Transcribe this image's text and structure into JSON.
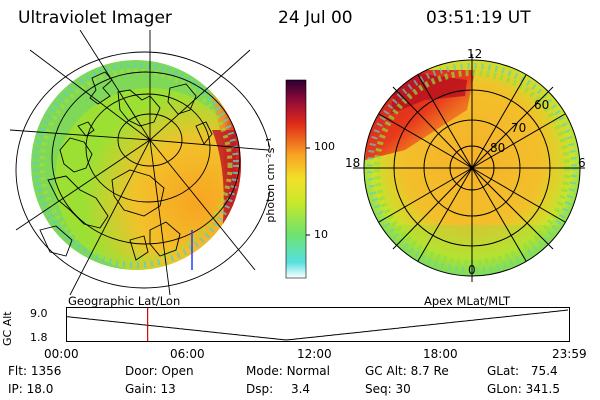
{
  "header": {
    "instrument": "Ultraviolet Imager",
    "date": "24 Jul 00",
    "time": "03:51:19 UT"
  },
  "colorbar": {
    "label": "photon cm⁻²s⁻¹",
    "ticks": [
      "100",
      "10"
    ],
    "scale": "log",
    "colors": [
      "#ffffff",
      "#55e0e0",
      "#6ee26e",
      "#c8e82a",
      "#f2e02a",
      "#f8a422",
      "#e02a1a",
      "#8e0a3a",
      "#2a0030"
    ]
  },
  "left_panel": {
    "caption": "Geographic Lat/Lon"
  },
  "right_panel": {
    "caption": "Apex MLat/MLT",
    "mlt_labels": [
      "12",
      "18",
      "6",
      "0"
    ],
    "lat_labels": [
      "60",
      "70",
      "80"
    ]
  },
  "altitude_plot": {
    "ylabel": "GC Alt",
    "yticks": [
      "9.0",
      "1.8"
    ],
    "xticks": [
      "00:00",
      "06:00",
      "12:00",
      "18:00",
      "23:59"
    ],
    "current_marker_hours": 3.86
  },
  "info": {
    "row1": [
      {
        "label": "Flt:",
        "value": "1356"
      },
      {
        "label": "Door:",
        "value": "Open"
      },
      {
        "label": "Mode:",
        "value": "Normal"
      },
      {
        "label": "GC Alt:",
        "value": "8.7 Re"
      },
      {
        "label": "GLat:",
        "value": "75.4"
      }
    ],
    "row2": [
      {
        "label": "IP:",
        "value": "18.0"
      },
      {
        "label": "Gain:",
        "value": "13"
      },
      {
        "label": "Dsp:",
        "value": "3.4"
      },
      {
        "label": "Seq:",
        "value": "30"
      },
      {
        "label": "GLon:",
        "value": "341.5"
      }
    ]
  }
}
